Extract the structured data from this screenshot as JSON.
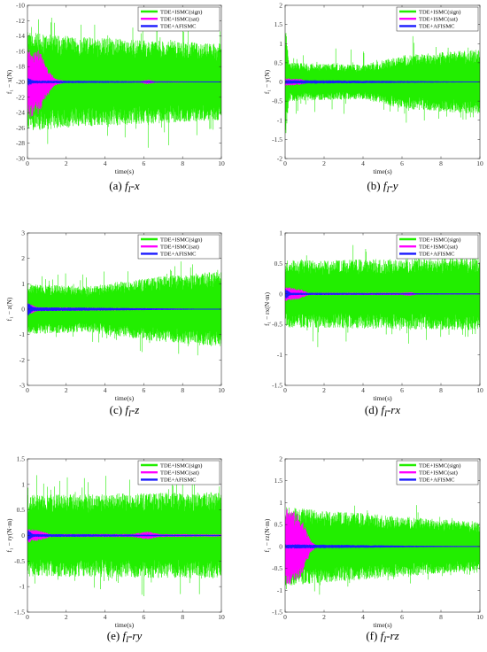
{
  "colors": {
    "sign": "#22ee00",
    "sat": "#ff00ff",
    "afismc": "#1a1aff",
    "afismc_line": "#1a1aff"
  },
  "legend": [
    "TDE+ISMC(sign)",
    "TDE+ISMC(sat)",
    "TDE+AFISMC"
  ],
  "chart_data": [
    {
      "id": "a",
      "type": "line",
      "caption_tag": "(a)",
      "caption_text": "f",
      "caption_sub": "I",
      "caption_suffix": "-x",
      "xlabel": "time(s)",
      "ylabel": "f₁ − x(N)",
      "xlim": [
        0,
        10
      ],
      "ylim": [
        -30,
        -10
      ],
      "xticks": [
        0,
        2,
        4,
        6,
        8,
        10
      ],
      "yticks": [
        -30,
        -28,
        -26,
        -24,
        -22,
        -20,
        -18,
        -16,
        -14,
        -12,
        -10
      ],
      "grid": false,
      "legend_position": "top-right",
      "series": [
        {
          "name": "TDE+ISMC(sign)",
          "level": -20,
          "amp": [
            [
              0,
              6.5
            ],
            [
              2,
              6.0
            ],
            [
              10,
              5.0
            ]
          ],
          "peak_extra": 3.5
        },
        {
          "name": "TDE+ISMC(sat)",
          "level": -20,
          "amp": [
            [
              0,
              4.8
            ],
            [
              0.6,
              4.2
            ],
            [
              1.0,
              2.0
            ],
            [
              1.4,
              0.5
            ],
            [
              2.0,
              0.05
            ],
            [
              5.8,
              0.1
            ],
            [
              6.2,
              0.3
            ],
            [
              6.6,
              0.1
            ],
            [
              10,
              0.05
            ]
          ]
        },
        {
          "name": "TDE+AFISMC",
          "level": -20,
          "amp": [
            [
              0,
              0.6
            ],
            [
              0.3,
              0.2
            ],
            [
              10,
              0.02
            ]
          ]
        }
      ]
    },
    {
      "id": "b",
      "type": "line",
      "caption_tag": "(b)",
      "caption_text": "f",
      "caption_sub": "I",
      "caption_suffix": "-y",
      "xlabel": "time(s)",
      "ylabel": "f₁ − y(N)",
      "xlim": [
        0,
        10
      ],
      "ylim": [
        -2,
        2
      ],
      "xticks": [
        0,
        2,
        4,
        6,
        8,
        10
      ],
      "yticks": [
        -2,
        -1.5,
        -1,
        -0.5,
        0,
        0.5,
        1,
        1.5,
        2
      ],
      "grid": false,
      "legend_position": "top-right",
      "series": [
        {
          "name": "TDE+ISMC(sign)",
          "level": 0,
          "amp": [
            [
              0,
              1.6
            ],
            [
              0.2,
              0.5
            ],
            [
              4,
              0.45
            ],
            [
              6,
              0.7
            ],
            [
              10,
              0.85
            ]
          ],
          "peak_extra": 0.5
        },
        {
          "name": "TDE+ISMC(sat)",
          "level": 0,
          "amp": [
            [
              0,
              0.1
            ],
            [
              0.8,
              0.08
            ],
            [
              1.2,
              0.02
            ],
            [
              10,
              0.01
            ]
          ]
        },
        {
          "name": "TDE+AFISMC",
          "level": 0,
          "amp": [
            [
              0,
              0.05
            ],
            [
              10,
              0.01
            ]
          ]
        }
      ]
    },
    {
      "id": "c",
      "type": "line",
      "caption_tag": "(c)",
      "caption_text": "f",
      "caption_sub": "I",
      "caption_suffix": "-z",
      "xlabel": "time(s)",
      "ylabel": "f₁ − z(N)",
      "xlim": [
        0,
        10
      ],
      "ylim": [
        -3,
        3
      ],
      "xticks": [
        0,
        2,
        4,
        6,
        8,
        10
      ],
      "yticks": [
        -3,
        -2,
        -1,
        0,
        1,
        2,
        3
      ],
      "grid": false,
      "legend_position": "top-right",
      "series": [
        {
          "name": "TDE+ISMC(sign)",
          "level": 0,
          "amp": [
            [
              0,
              1.0
            ],
            [
              3,
              0.9
            ],
            [
              7,
              1.3
            ],
            [
              10,
              1.5
            ]
          ],
          "peak_extra": 0.7
        },
        {
          "name": "TDE+ISMC(sat)",
          "level": 0,
          "amp": [
            [
              0,
              0.25
            ],
            [
              0.5,
              0.08
            ],
            [
              10,
              0.01
            ]
          ]
        },
        {
          "name": "TDE+AFISMC",
          "level": 0,
          "amp": [
            [
              0,
              0.3
            ],
            [
              0.3,
              0.08
            ],
            [
              10,
              0.01
            ]
          ]
        }
      ]
    },
    {
      "id": "d",
      "type": "line",
      "caption_tag": "(d)",
      "caption_text": "f",
      "caption_sub": "I",
      "caption_suffix": "-rx",
      "xlabel": "time(s)",
      "ylabel": "f₁ − rx(N·m)",
      "xlim": [
        0,
        10
      ],
      "ylim": [
        -1.5,
        1
      ],
      "xticks": [
        0,
        2,
        4,
        6,
        8,
        10
      ],
      "yticks": [
        -1.5,
        -1,
        -0.5,
        0,
        0.5,
        1
      ],
      "grid": false,
      "legend_position": "top-right",
      "series": [
        {
          "name": "TDE+ISMC(sign)",
          "level": 0,
          "amp": [
            [
              0,
              0.55
            ],
            [
              10,
              0.6
            ]
          ],
          "peak_extra": 0.35
        },
        {
          "name": "TDE+ISMC(sat)",
          "level": 0,
          "amp": [
            [
              0,
              0.12
            ],
            [
              0.8,
              0.08
            ],
            [
              1.2,
              0.02
            ],
            [
              6.0,
              0.02
            ],
            [
              6.4,
              0.03
            ],
            [
              6.8,
              0.01
            ],
            [
              10,
              0.01
            ]
          ]
        },
        {
          "name": "TDE+AFISMC",
          "level": 0,
          "amp": [
            [
              0,
              0.1
            ],
            [
              0.3,
              0.02
            ],
            [
              10,
              0.005
            ]
          ]
        }
      ]
    },
    {
      "id": "e",
      "type": "line",
      "caption_tag": "(e)",
      "caption_text": "f",
      "caption_sub": "I",
      "caption_suffix": "-ry",
      "xlabel": "time(s)",
      "ylabel": "f₁ − ry(N·m)",
      "xlim": [
        0,
        10
      ],
      "ylim": [
        -1.5,
        1.5
      ],
      "xticks": [
        0,
        2,
        4,
        6,
        8,
        10
      ],
      "yticks": [
        -1.5,
        -1,
        -0.5,
        0,
        0.5,
        1,
        1.5
      ],
      "grid": false,
      "legend_position": "top-right",
      "series": [
        {
          "name": "TDE+ISMC(sign)",
          "level": 0,
          "amp": [
            [
              0,
              0.8
            ],
            [
              10,
              0.85
            ]
          ],
          "peak_extra": 0.5
        },
        {
          "name": "TDE+ISMC(sat)",
          "level": 0,
          "amp": [
            [
              0,
              0.15
            ],
            [
              0.8,
              0.08
            ],
            [
              1.2,
              0.03
            ],
            [
              5.4,
              0.03
            ],
            [
              6.2,
              0.08
            ],
            [
              6.8,
              0.03
            ],
            [
              10,
              0.02
            ]
          ]
        },
        {
          "name": "TDE+AFISMC",
          "level": 0,
          "amp": [
            [
              0,
              0.12
            ],
            [
              0.3,
              0.03
            ],
            [
              10,
              0.01
            ]
          ]
        }
      ]
    },
    {
      "id": "f",
      "type": "line",
      "caption_tag": "(f)",
      "caption_text": "f",
      "caption_sub": "I",
      "caption_suffix": "-rz",
      "xlabel": "time(s)",
      "ylabel": "f₁ − rz(N·m)",
      "xlim": [
        0,
        10
      ],
      "ylim": [
        -1.5,
        2
      ],
      "xticks": [
        0,
        2,
        4,
        6,
        8,
        10
      ],
      "yticks": [
        -1.5,
        -1,
        -0.5,
        0,
        0.5,
        1,
        1.5,
        2
      ],
      "grid": false,
      "legend_position": "top-right",
      "series": [
        {
          "name": "TDE+ISMC(sign)",
          "level": 0,
          "amp": [
            [
              0,
              0.9
            ],
            [
              10,
              0.55
            ]
          ],
          "peak_extra": 0.3
        },
        {
          "name": "TDE+ISMC(sat)",
          "level": 0,
          "amp": [
            [
              0,
              0.95
            ],
            [
              0.8,
              0.7
            ],
            [
              1.0,
              0.5
            ],
            [
              1.3,
              0.15
            ],
            [
              1.6,
              0.02
            ],
            [
              10,
              0.01
            ]
          ]
        },
        {
          "name": "TDE+AFISMC",
          "level": 0,
          "amp": [
            [
              0,
              0.05
            ],
            [
              10,
              0.005
            ]
          ]
        }
      ]
    }
  ]
}
